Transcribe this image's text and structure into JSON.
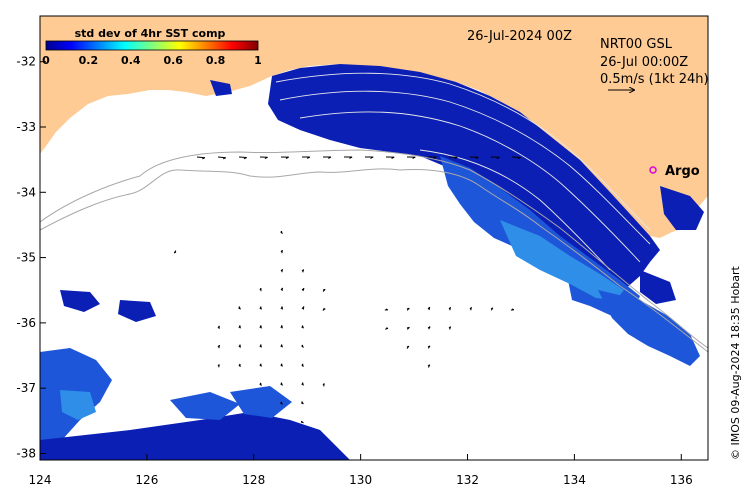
{
  "map": {
    "date_title": "26-Jul-2024 00Z",
    "info_lines": [
      "NRT00 GSL",
      "26-Jul 00:00Z",
      "0.5m/s (1kt 24h)"
    ],
    "argo_label": "Argo",
    "credit": "© IMOS 09-Aug-2024 18:35 Hobart",
    "colorbar": {
      "title": "std dev of 4hr SST comp",
      "ticks": [
        "0",
        "0.2",
        "0.4",
        "0.6",
        "0.8",
        "1"
      ]
    },
    "x_ticks": [
      "124",
      "126",
      "128",
      "130",
      "132",
      "134",
      "136"
    ],
    "y_ticks": [
      "-32",
      "-33",
      "-34",
      "-35",
      "-36",
      "-37",
      "-38"
    ],
    "lon_range": [
      124,
      136.5
    ],
    "lat_range": [
      -38.1,
      -31.3
    ],
    "colors": {
      "land": "#FECB94",
      "data_dark": "#0B1FB5",
      "data_mid": "#1E56D9",
      "data_light": "#2E8EE8"
    }
  }
}
